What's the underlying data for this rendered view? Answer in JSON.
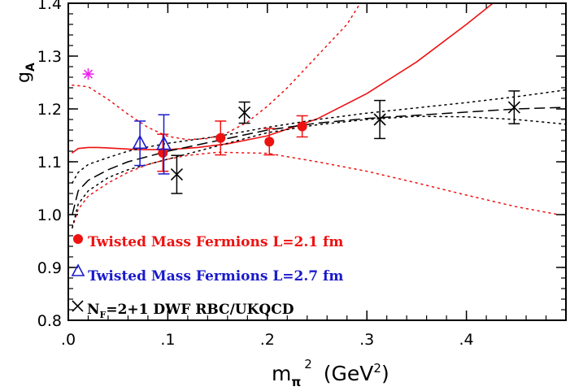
{
  "chart_data": {
    "type": "scatter",
    "title": "",
    "xlabel": {
      "base": "m",
      "sub": "π",
      "sup": "2",
      "unit": "(GeV",
      "unit_sup": "2",
      "unit_close": ")"
    },
    "ylabel": {
      "base": "g",
      "sub": "A"
    },
    "xlim": [
      0.0,
      0.5
    ],
    "ylim": [
      0.8,
      1.4
    ],
    "x_ticks": [
      {
        "value": 0.0,
        "label": ".0"
      },
      {
        "value": 0.1,
        "label": ".1"
      },
      {
        "value": 0.2,
        "label": ".2"
      },
      {
        "value": 0.3,
        "label": ".3"
      },
      {
        "value": 0.4,
        "label": ".4"
      }
    ],
    "y_ticks": [
      {
        "value": 0.8,
        "label": "0.8"
      },
      {
        "value": 0.9,
        "label": "0.9"
      },
      {
        "value": 1.0,
        "label": "1.0"
      },
      {
        "value": 1.1,
        "label": "1.1"
      },
      {
        "value": 1.2,
        "label": "1.2"
      },
      {
        "value": 1.3,
        "label": "1.3"
      },
      {
        "value": 1.4,
        "label": "1.4"
      }
    ],
    "grid": false,
    "legend_position": "bottom-left",
    "colors": {
      "red": "#ee1111",
      "blue": "#1a1acc",
      "black": "#000000",
      "magenta": "#ee22ee"
    },
    "series": [
      {
        "name": "Twisted Mass Fermions L=2.1 fm",
        "marker": "filled-circle",
        "color": "#ee1111",
        "points": [
          {
            "x": 0.095,
            "y": 1.117,
            "err": 0.035
          },
          {
            "x": 0.153,
            "y": 1.145,
            "err": 0.032
          },
          {
            "x": 0.202,
            "y": 1.138,
            "err": 0.025
          },
          {
            "x": 0.235,
            "y": 1.167,
            "err": 0.02
          }
        ]
      },
      {
        "name": "Twisted Mass Fermions L=2.7 fm",
        "marker": "open-triangle",
        "color": "#1a1acc",
        "points": [
          {
            "x": 0.072,
            "y": 1.135,
            "err": 0.042
          },
          {
            "x": 0.096,
            "y": 1.133,
            "err": 0.056
          }
        ]
      },
      {
        "name_parts": {
          "pre": "N",
          "sub": "F",
          "post": "=2+1 DWF RBC/UKQCD"
        },
        "marker": "cross",
        "color": "#000000",
        "points": [
          {
            "x": 0.109,
            "y": 1.076,
            "err": 0.036
          },
          {
            "x": 0.177,
            "y": 1.193,
            "err": 0.02
          },
          {
            "x": 0.313,
            "y": 1.18,
            "err": 0.036
          },
          {
            "x": 0.448,
            "y": 1.203,
            "err": 0.031
          }
        ]
      },
      {
        "marker": "star",
        "color": "#ee22ee",
        "points": [
          {
            "x": 0.02,
            "y": 1.266
          }
        ]
      }
    ],
    "curves": [
      {
        "style": "solid",
        "color": "#ee1111",
        "points": [
          [
            0.004,
            1.117
          ],
          [
            0.01,
            1.125
          ],
          [
            0.02,
            1.127
          ],
          [
            0.03,
            1.127
          ],
          [
            0.05,
            1.125
          ],
          [
            0.07,
            1.123
          ],
          [
            0.1,
            1.123
          ],
          [
            0.13,
            1.127
          ],
          [
            0.16,
            1.134
          ],
          [
            0.2,
            1.149
          ],
          [
            0.25,
            1.181
          ],
          [
            0.3,
            1.229
          ],
          [
            0.35,
            1.289
          ],
          [
            0.4,
            1.36
          ],
          [
            0.43,
            1.405
          ]
        ]
      },
      {
        "style": "dotted",
        "color": "#ee1111",
        "points": [
          [
            0.004,
            1.245
          ],
          [
            0.02,
            1.242
          ],
          [
            0.04,
            1.218
          ],
          [
            0.06,
            1.19
          ],
          [
            0.08,
            1.165
          ],
          [
            0.1,
            1.148
          ],
          [
            0.12,
            1.142
          ],
          [
            0.14,
            1.144
          ],
          [
            0.16,
            1.155
          ],
          [
            0.18,
            1.175
          ],
          [
            0.2,
            1.205
          ],
          [
            0.22,
            1.24
          ],
          [
            0.24,
            1.28
          ],
          [
            0.26,
            1.32
          ],
          [
            0.28,
            1.36
          ],
          [
            0.295,
            1.405
          ]
        ]
      },
      {
        "style": "dotted",
        "color": "#ee1111",
        "points": [
          [
            0.004,
            0.975
          ],
          [
            0.01,
            1.01
          ],
          [
            0.02,
            1.035
          ],
          [
            0.04,
            1.06
          ],
          [
            0.06,
            1.08
          ],
          [
            0.08,
            1.095
          ],
          [
            0.1,
            1.105
          ],
          [
            0.12,
            1.112
          ],
          [
            0.15,
            1.118
          ],
          [
            0.2,
            1.116
          ],
          [
            0.25,
            1.1
          ],
          [
            0.3,
            1.082
          ],
          [
            0.35,
            1.06
          ],
          [
            0.4,
            1.037
          ],
          [
            0.45,
            1.015
          ],
          [
            0.49,
            1.001
          ]
        ]
      },
      {
        "style": "dashed",
        "color": "#000000",
        "points": [
          [
            0.004,
            1.0
          ],
          [
            0.01,
            1.045
          ],
          [
            0.02,
            1.065
          ],
          [
            0.04,
            1.085
          ],
          [
            0.06,
            1.1
          ],
          [
            0.08,
            1.11
          ],
          [
            0.1,
            1.12
          ],
          [
            0.15,
            1.14
          ],
          [
            0.2,
            1.16
          ],
          [
            0.25,
            1.173
          ],
          [
            0.3,
            1.182
          ],
          [
            0.35,
            1.188
          ],
          [
            0.4,
            1.194
          ],
          [
            0.45,
            1.2
          ],
          [
            0.5,
            1.203
          ]
        ]
      },
      {
        "style": "dotted",
        "color": "#000000",
        "points": [
          [
            0.004,
            1.06
          ],
          [
            0.01,
            1.08
          ],
          [
            0.02,
            1.095
          ],
          [
            0.04,
            1.108
          ],
          [
            0.06,
            1.12
          ],
          [
            0.08,
            1.128
          ],
          [
            0.1,
            1.135
          ],
          [
            0.15,
            1.148
          ],
          [
            0.2,
            1.165
          ],
          [
            0.25,
            1.18
          ],
          [
            0.3,
            1.192
          ],
          [
            0.35,
            1.202
          ],
          [
            0.4,
            1.212
          ],
          [
            0.45,
            1.223
          ],
          [
            0.5,
            1.236
          ]
        ]
      },
      {
        "style": "dotted",
        "color": "#000000",
        "points": [
          [
            0.004,
            0.975
          ],
          [
            0.01,
            1.02
          ],
          [
            0.02,
            1.045
          ],
          [
            0.04,
            1.07
          ],
          [
            0.06,
            1.085
          ],
          [
            0.08,
            1.095
          ],
          [
            0.1,
            1.105
          ],
          [
            0.15,
            1.13
          ],
          [
            0.2,
            1.155
          ],
          [
            0.25,
            1.17
          ],
          [
            0.3,
            1.18
          ],
          [
            0.35,
            1.186
          ],
          [
            0.4,
            1.185
          ],
          [
            0.45,
            1.18
          ],
          [
            0.5,
            1.171
          ]
        ]
      }
    ]
  }
}
